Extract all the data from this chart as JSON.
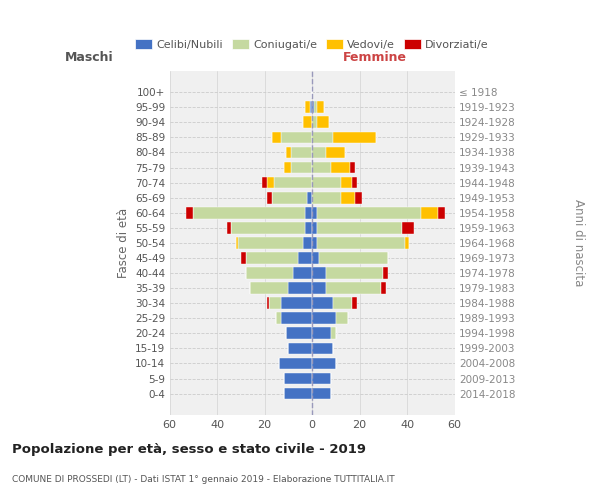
{
  "age_groups": [
    "0-4",
    "5-9",
    "10-14",
    "15-19",
    "20-24",
    "25-29",
    "30-34",
    "35-39",
    "40-44",
    "45-49",
    "50-54",
    "55-59",
    "60-64",
    "65-69",
    "70-74",
    "75-79",
    "80-84",
    "85-89",
    "90-94",
    "95-99",
    "100+"
  ],
  "birth_years": [
    "2014-2018",
    "2009-2013",
    "2004-2008",
    "1999-2003",
    "1994-1998",
    "1989-1993",
    "1984-1988",
    "1979-1983",
    "1974-1978",
    "1969-1973",
    "1964-1968",
    "1959-1963",
    "1954-1958",
    "1949-1953",
    "1944-1948",
    "1939-1943",
    "1934-1938",
    "1929-1933",
    "1924-1928",
    "1919-1923",
    "≤ 1918"
  ],
  "male": {
    "celibi": [
      12,
      12,
      14,
      10,
      11,
      13,
      13,
      10,
      8,
      6,
      4,
      3,
      3,
      2,
      0,
      0,
      0,
      0,
      0,
      1,
      0
    ],
    "coniugati": [
      0,
      0,
      0,
      0,
      0,
      2,
      5,
      16,
      20,
      22,
      27,
      31,
      47,
      15,
      16,
      9,
      9,
      13,
      0,
      0,
      0
    ],
    "vedovi": [
      0,
      0,
      0,
      0,
      0,
      0,
      0,
      0,
      0,
      0,
      1,
      0,
      0,
      0,
      3,
      3,
      2,
      4,
      4,
      2,
      0
    ],
    "divorziati": [
      0,
      0,
      0,
      0,
      0,
      0,
      1,
      0,
      0,
      2,
      0,
      2,
      3,
      2,
      2,
      0,
      0,
      0,
      0,
      0,
      0
    ]
  },
  "female": {
    "nubili": [
      8,
      8,
      10,
      9,
      8,
      10,
      9,
      6,
      6,
      3,
      2,
      2,
      2,
      0,
      0,
      0,
      0,
      0,
      0,
      1,
      0
    ],
    "coniugate": [
      0,
      0,
      0,
      0,
      2,
      5,
      8,
      23,
      24,
      29,
      37,
      36,
      44,
      12,
      12,
      8,
      6,
      9,
      2,
      1,
      0
    ],
    "vedove": [
      0,
      0,
      0,
      0,
      0,
      0,
      0,
      0,
      0,
      0,
      2,
      0,
      7,
      6,
      5,
      8,
      8,
      18,
      5,
      3,
      0
    ],
    "divorziate": [
      0,
      0,
      0,
      0,
      0,
      0,
      2,
      2,
      2,
      0,
      0,
      5,
      3,
      3,
      2,
      2,
      0,
      0,
      0,
      0,
      0
    ]
  },
  "colors": {
    "celibi": "#4472c4",
    "coniugati": "#c5d9a0",
    "vedovi": "#ffc000",
    "divorziati": "#cc0000"
  },
  "xlim": 60,
  "title": "Popolazione per età, sesso e stato civile - 2019",
  "subtitle": "COMUNE DI PROSSEDI (LT) - Dati ISTAT 1° gennaio 2019 - Elaborazione TUTTITALIA.IT",
  "ylabel_left": "Fasce di età",
  "ylabel_right": "Anni di nascita",
  "xlabel_left": "Maschi",
  "xlabel_right": "Femmine",
  "legend_labels": [
    "Celibi/Nubili",
    "Coniugati/e",
    "Vedovi/e",
    "Divorziati/e"
  ],
  "bg_color": "#f0f0f0",
  "grid_color": "#cccccc"
}
